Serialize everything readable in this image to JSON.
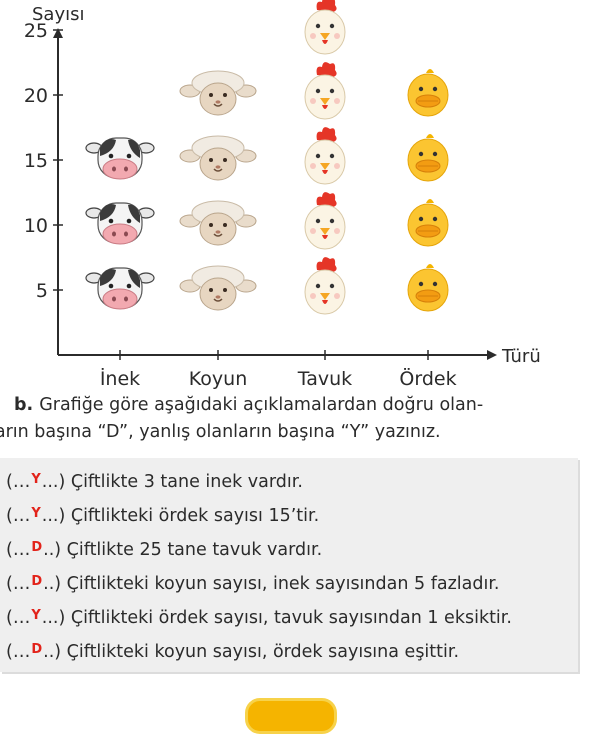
{
  "chart_data": {
    "type": "pictograph",
    "ylabel": "Sayısı",
    "xlabel": "Türü",
    "yticks": [
      5,
      10,
      15,
      20,
      25
    ],
    "ylim": [
      0,
      28
    ],
    "categories": [
      "İnek",
      "Koyun",
      "Tavuk",
      "Ördek"
    ],
    "values": [
      15,
      20,
      25,
      20
    ],
    "icons": [
      "cow-icon",
      "sheep-icon",
      "chicken-icon",
      "duck-icon"
    ],
    "unit_per_icon": 5
  },
  "question": {
    "letter": "b.",
    "line1": "Grafiğe göre aşağıdaki açıklamalardan doğru olan-",
    "line2": "ların başına “D”, yanlış olanların başına “Y” yazınız."
  },
  "statements": [
    {
      "answer": "Y",
      "text": "Çiftlikte 3 tane inek vardır."
    },
    {
      "answer": "Y",
      "text": "Çiftlikteki ördek sayısı 15’tir."
    },
    {
      "answer": "D",
      "text": "Çiftlikte 25 tane tavuk vardır."
    },
    {
      "answer": "D",
      "text": "Çiftlikteki koyun sayısı, inek sayısından 5 fazladır."
    },
    {
      "answer": "Y",
      "text": "Çiftlikteki ördek sayısı, tavuk sayısından 1 eksiktir."
    },
    {
      "answer": "D",
      "text": "Çiftlikteki koyun sayısı, ördek sayısına eşittir."
    }
  ],
  "colors": {
    "answer": "#e2231a",
    "panel": "#efefef",
    "badge": "#f5b400"
  }
}
